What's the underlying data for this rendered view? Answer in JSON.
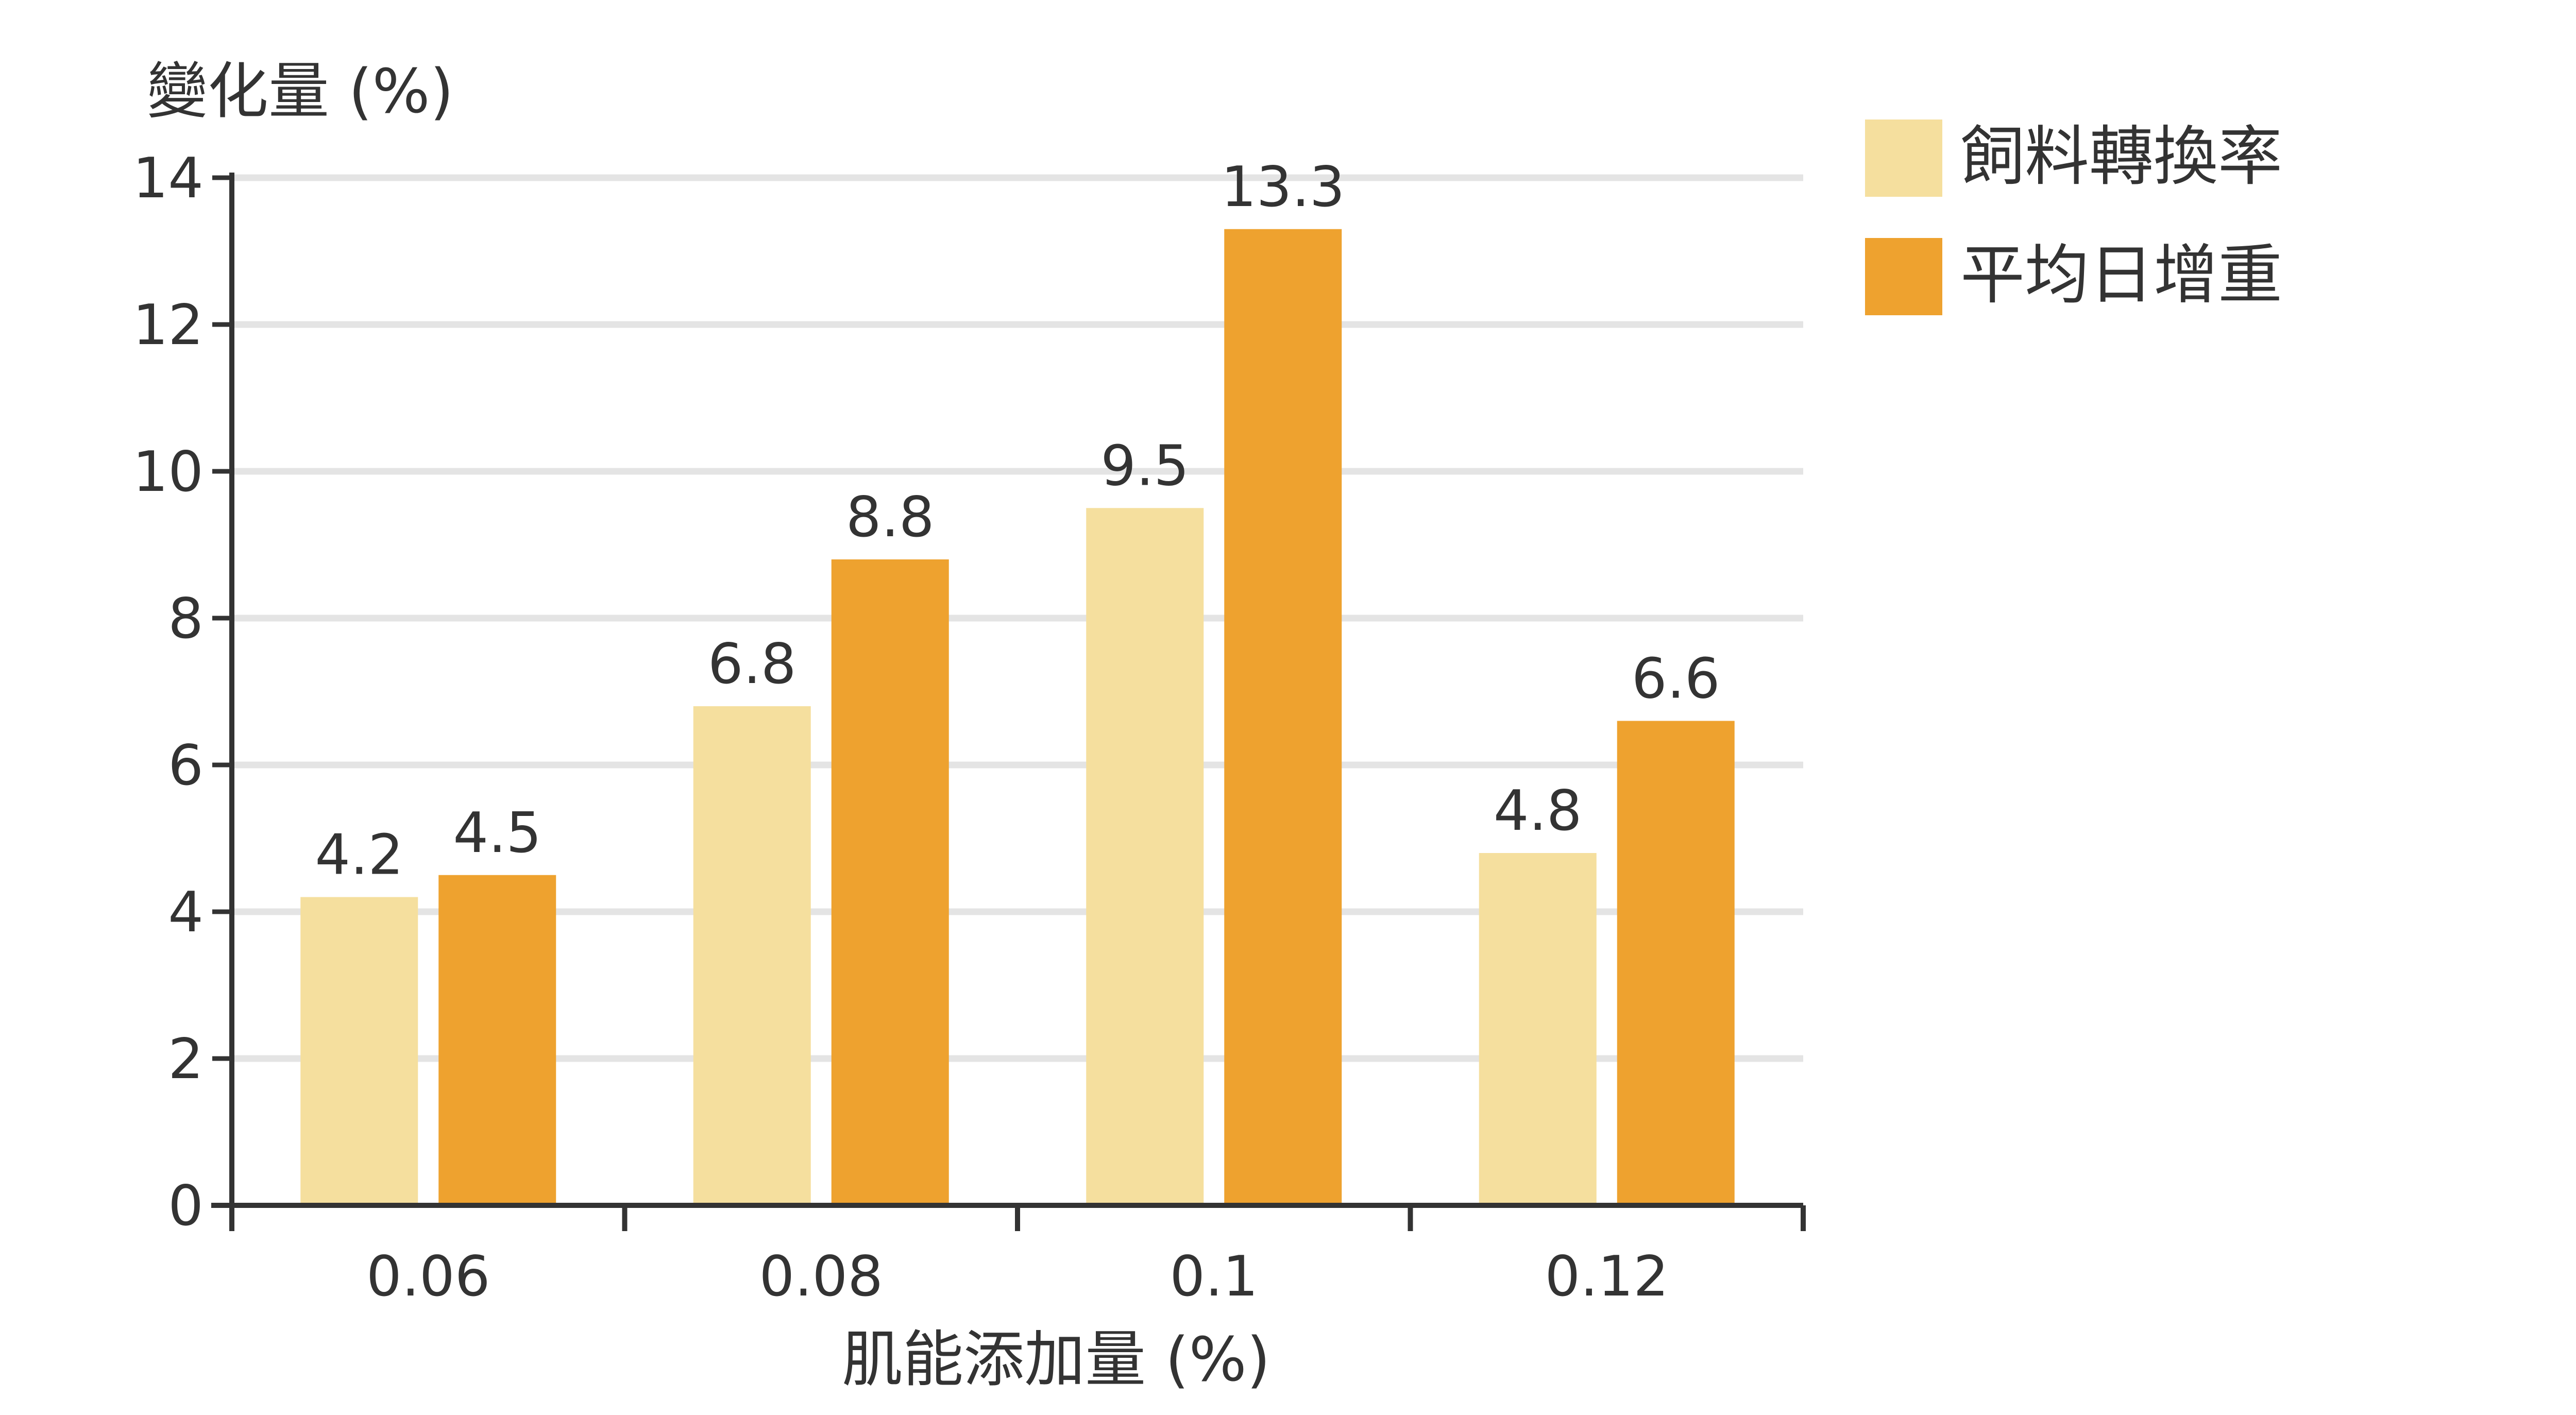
{
  "chart_data": {
    "type": "bar",
    "ylabel": "變化量 (%)",
    "xlabel": "肌能添加量 (%)",
    "categories": [
      "0.06",
      "0.08",
      "0.1",
      "0.12"
    ],
    "ylim": [
      0,
      14
    ],
    "yticks": [
      "0",
      "2",
      "4",
      "6",
      "8",
      "10",
      "12",
      "14"
    ],
    "grid": true,
    "legend_position": "top-right",
    "series": [
      {
        "name": "飼料轉換率",
        "color": "#F5DF9E",
        "values": [
          4.2,
          6.8,
          9.5,
          4.8
        ],
        "labels": [
          "4.2",
          "6.8",
          "9.5",
          "4.8"
        ]
      },
      {
        "name": "平均日增重",
        "color": "#EEA22F",
        "values": [
          4.5,
          8.8,
          13.3,
          6.6
        ],
        "labels": [
          "4.5",
          "8.8",
          "13.3",
          "6.6"
        ]
      }
    ]
  }
}
